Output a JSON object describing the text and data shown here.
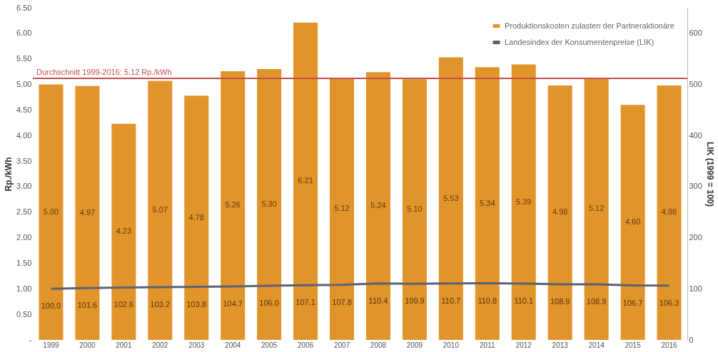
{
  "chart_data": {
    "type": "bar",
    "ylabel": "Rp./kWh",
    "y2label": "LIK (1999 = 100)",
    "categories": [
      "1999",
      "2000",
      "2001",
      "2002",
      "2003",
      "2004",
      "2005",
      "2006",
      "2007",
      "2008",
      "2009",
      "2010",
      "2011",
      "2012",
      "2013",
      "2014",
      "2015",
      "2016"
    ],
    "series": [
      {
        "name": "Produktionskosten zulasten der Partneraktionäre",
        "type": "bar",
        "color": "#e0942a",
        "values": [
          5.0,
          4.97,
          4.23,
          5.07,
          4.78,
          5.26,
          5.3,
          6.21,
          5.12,
          5.24,
          5.1,
          5.53,
          5.34,
          5.39,
          4.98,
          5.12,
          4.6,
          4.98
        ],
        "value_labels": [
          "5.00",
          "4.97",
          "4.23",
          "5.07",
          "4.78",
          "5.26",
          "5.30",
          "6.21",
          "5.12",
          "5.24",
          "5.10",
          "5.53",
          "5.34",
          "5.39",
          "4.98",
          "5.12",
          "4.60",
          "4.98"
        ]
      },
      {
        "name": "Landesindex der Konsumentenpreise (LIK)",
        "type": "line",
        "axis": "y2",
        "color": "#5a6273",
        "values": [
          100.0,
          101.6,
          102.6,
          103.2,
          103.8,
          104.7,
          106.0,
          107.1,
          107.8,
          110.4,
          109.9,
          110.7,
          110.8,
          110.1,
          108.9,
          108.9,
          106.7,
          106.3
        ],
        "value_labels": [
          "100.0",
          "101.6",
          "102.6",
          "103.2",
          "103.8",
          "104.7",
          "106.0",
          "107.1",
          "107.8",
          "110.4",
          "109.9",
          "110.7",
          "110.8",
          "110.1",
          "108.9",
          "108.9",
          "106.7",
          "106.3"
        ]
      }
    ],
    "ylim": [
      0,
      6.5
    ],
    "yticks": [
      {
        "value": 0,
        "label": "-"
      },
      {
        "value": 0.5,
        "label": "0.50"
      },
      {
        "value": 1,
        "label": "1.00"
      },
      {
        "value": 1.5,
        "label": "1.50"
      },
      {
        "value": 2,
        "label": "2.00"
      },
      {
        "value": 2.5,
        "label": "2.50"
      },
      {
        "value": 3,
        "label": "3.00"
      },
      {
        "value": 3.5,
        "label": "3.50"
      },
      {
        "value": 4,
        "label": "4.00"
      },
      {
        "value": 4.5,
        "label": "4.50"
      },
      {
        "value": 5,
        "label": "5.00"
      },
      {
        "value": 5.5,
        "label": "5.50"
      },
      {
        "value": 6,
        "label": "6.00"
      },
      {
        "value": 6.5,
        "label": "6.50"
      }
    ],
    "y2lim": [
      0,
      650
    ],
    "y2ticks": [
      0,
      100,
      200,
      300,
      400,
      500,
      600
    ],
    "ref_lines": [
      {
        "axis": "y",
        "value": 5.12,
        "label": "Durchschnitt 1999-2016: 5.12 Rp./kWh",
        "color": "#c0504d"
      }
    ],
    "legend": "top right",
    "grid": false
  }
}
